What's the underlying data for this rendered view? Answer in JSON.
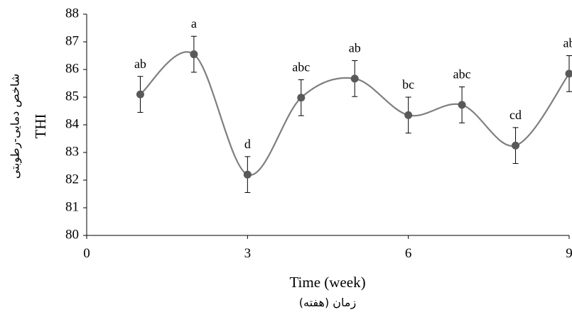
{
  "chart_data": {
    "type": "line",
    "smooth": true,
    "x": [
      1,
      2,
      3,
      4,
      5,
      6,
      7,
      8,
      9
    ],
    "series": [
      {
        "values": [
          85.1,
          86.55,
          82.2,
          84.98,
          85.67,
          84.35,
          84.72,
          83.25,
          85.85
        ],
        "error": [
          0.65,
          0.65,
          0.65,
          0.65,
          0.65,
          0.65,
          0.65,
          0.65,
          0.65
        ],
        "labels": [
          "ab",
          "a",
          "d",
          "abc",
          "ab",
          "bc",
          "abc",
          "cd",
          "ab"
        ]
      }
    ],
    "xlim": [
      0,
      9
    ],
    "ylim": [
      80,
      88
    ],
    "xticks": [
      "0",
      "3",
      "6",
      "9"
    ],
    "yticks": [
      "80",
      "81",
      "82",
      "83",
      "84",
      "85",
      "86",
      "87",
      "88"
    ],
    "xlabel": "Time (week)",
    "xlabel_fa": "زمان (هفته)",
    "ylabel": "THI",
    "ylabel_fa": "شاخص دمایی-رطوبتی",
    "grid": false,
    "colors": {
      "line": "#7f7f7f",
      "marker": "#595959",
      "axis": "#000000"
    }
  }
}
